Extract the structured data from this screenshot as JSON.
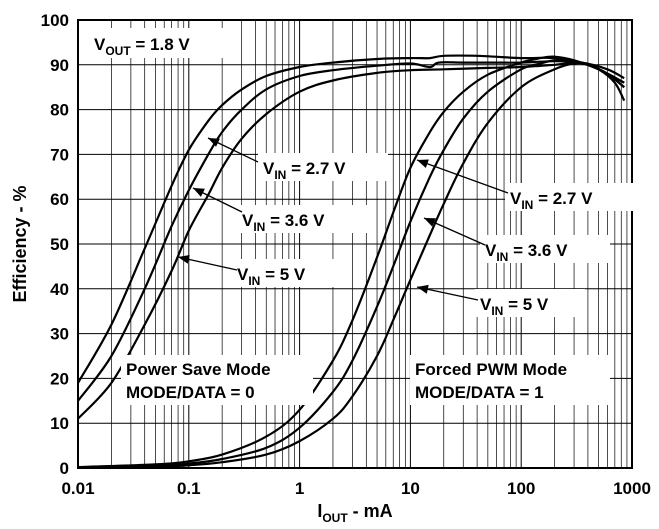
{
  "chart_data": {
    "type": "line",
    "xscale": "log",
    "xlim": [
      0.01,
      1000
    ],
    "ylim": [
      0,
      100
    ],
    "grid": true,
    "x_ticks": [
      "0.01",
      "0.1",
      "1",
      "10",
      "100",
      "1000"
    ],
    "y_ticks": [
      "0",
      "10",
      "20",
      "30",
      "40",
      "50",
      "60",
      "70",
      "80",
      "90",
      "100"
    ],
    "xlabel": {
      "main": "I",
      "sub": "OUT",
      "rest": " - mA"
    },
    "ylabel": "Efficiency - %",
    "vout_label": {
      "main": "V",
      "sub": "OUT",
      "rest": " = 1.8 V"
    },
    "mode_labels": {
      "power_save": [
        "Power Save Mode",
        "MODE/DATA = 0"
      ],
      "forced_pwm": [
        "Forced PWM Mode",
        "MODE/DATA = 1"
      ]
    },
    "series_labels": {
      "ps_27": {
        "main": "V",
        "sub": "IN",
        "rest": " = 2.7 V"
      },
      "ps_36": {
        "main": "V",
        "sub": "IN",
        "rest": " = 3.6 V"
      },
      "ps_5": {
        "main": "V",
        "sub": "IN",
        "rest": " = 5 V"
      },
      "pwm_27": {
        "main": "V",
        "sub": "IN",
        "rest": " = 2.7 V"
      },
      "pwm_36": {
        "main": "V",
        "sub": "IN",
        "rest": " = 3.6 V"
      },
      "pwm_5": {
        "main": "V",
        "sub": "IN",
        "rest": " = 5 V"
      }
    },
    "series": [
      {
        "id": "ps_27",
        "points": [
          [
            0.01,
            19
          ],
          [
            0.02,
            32
          ],
          [
            0.04,
            49
          ],
          [
            0.07,
            63
          ],
          [
            0.1,
            71
          ],
          [
            0.15,
            77.5
          ],
          [
            0.2,
            81
          ],
          [
            0.3,
            84.5
          ],
          [
            0.5,
            87.5
          ],
          [
            1,
            89.5
          ],
          [
            2,
            90.5
          ],
          [
            5,
            91.3
          ],
          [
            10,
            91.5
          ],
          [
            15,
            91.5
          ],
          [
            20,
            92
          ],
          [
            40,
            92
          ],
          [
            100,
            91.5
          ],
          [
            200,
            91.5
          ],
          [
            400,
            90
          ],
          [
            600,
            88
          ],
          [
            850,
            85
          ]
        ]
      },
      {
        "id": "ps_36",
        "points": [
          [
            0.01,
            15
          ],
          [
            0.02,
            25
          ],
          [
            0.04,
            40
          ],
          [
            0.07,
            54
          ],
          [
            0.1,
            62
          ],
          [
            0.15,
            70
          ],
          [
            0.2,
            75
          ],
          [
            0.3,
            80
          ],
          [
            0.5,
            84.5
          ],
          [
            1,
            87.5
          ],
          [
            2,
            88.8
          ],
          [
            5,
            89.8
          ],
          [
            10,
            90.3
          ],
          [
            15,
            89.5
          ],
          [
            18,
            90.5
          ],
          [
            30,
            90.5
          ],
          [
            60,
            90.5
          ],
          [
            100,
            90.5
          ],
          [
            200,
            90.8
          ],
          [
            350,
            90.5
          ],
          [
            600,
            89
          ],
          [
            850,
            87
          ]
        ]
      },
      {
        "id": "ps_5",
        "points": [
          [
            0.01,
            11
          ],
          [
            0.02,
            19
          ],
          [
            0.04,
            32
          ],
          [
            0.07,
            44
          ],
          [
            0.1,
            53
          ],
          [
            0.15,
            61
          ],
          [
            0.2,
            67
          ],
          [
            0.3,
            73.5
          ],
          [
            0.5,
            79
          ],
          [
            1,
            84
          ],
          [
            2,
            86.5
          ],
          [
            5,
            88.2
          ],
          [
            10,
            88.8
          ],
          [
            20,
            89
          ],
          [
            50,
            89.3
          ],
          [
            100,
            89.5
          ],
          [
            200,
            90
          ],
          [
            350,
            90.5
          ],
          [
            500,
            89
          ],
          [
            700,
            86
          ],
          [
            850,
            82
          ]
        ]
      },
      {
        "id": "pwm_27",
        "points": [
          [
            0.01,
            0.2
          ],
          [
            0.05,
            0.8
          ],
          [
            0.1,
            1.5
          ],
          [
            0.2,
            3
          ],
          [
            0.5,
            7
          ],
          [
            1,
            13
          ],
          [
            2,
            24
          ],
          [
            3,
            33
          ],
          [
            5,
            47
          ],
          [
            7,
            57
          ],
          [
            10,
            67
          ],
          [
            15,
            75
          ],
          [
            20,
            79.5
          ],
          [
            30,
            84
          ],
          [
            50,
            87.8
          ],
          [
            100,
            90.5
          ],
          [
            150,
            91.5
          ],
          [
            200,
            91.8
          ],
          [
            300,
            91
          ],
          [
            500,
            89
          ],
          [
            850,
            86
          ]
        ]
      },
      {
        "id": "pwm_36",
        "points": [
          [
            0.01,
            0.1
          ],
          [
            0.05,
            0.5
          ],
          [
            0.1,
            1
          ],
          [
            0.2,
            2
          ],
          [
            0.5,
            4.5
          ],
          [
            1,
            9
          ],
          [
            2,
            17
          ],
          [
            3,
            24
          ],
          [
            5,
            36
          ],
          [
            7,
            45
          ],
          [
            10,
            55
          ],
          [
            15,
            65
          ],
          [
            20,
            71
          ],
          [
            30,
            78
          ],
          [
            50,
            84
          ],
          [
            100,
            89
          ],
          [
            150,
            90.3
          ],
          [
            200,
            91
          ],
          [
            300,
            90.8
          ],
          [
            500,
            89
          ],
          [
            850,
            86
          ]
        ]
      },
      {
        "id": "pwm_5",
        "points": [
          [
            0.01,
            0.1
          ],
          [
            0.05,
            0.3
          ],
          [
            0.1,
            0.6
          ],
          [
            0.2,
            1.3
          ],
          [
            0.5,
            3
          ],
          [
            1,
            6
          ],
          [
            2,
            11
          ],
          [
            3,
            16
          ],
          [
            5,
            25
          ],
          [
            7,
            33
          ],
          [
            10,
            42
          ],
          [
            15,
            52
          ],
          [
            20,
            59
          ],
          [
            30,
            68
          ],
          [
            50,
            77
          ],
          [
            100,
            85
          ],
          [
            200,
            89
          ],
          [
            300,
            90.3
          ],
          [
            400,
            90
          ],
          [
            600,
            88
          ],
          [
            850,
            85
          ]
        ]
      }
    ]
  }
}
